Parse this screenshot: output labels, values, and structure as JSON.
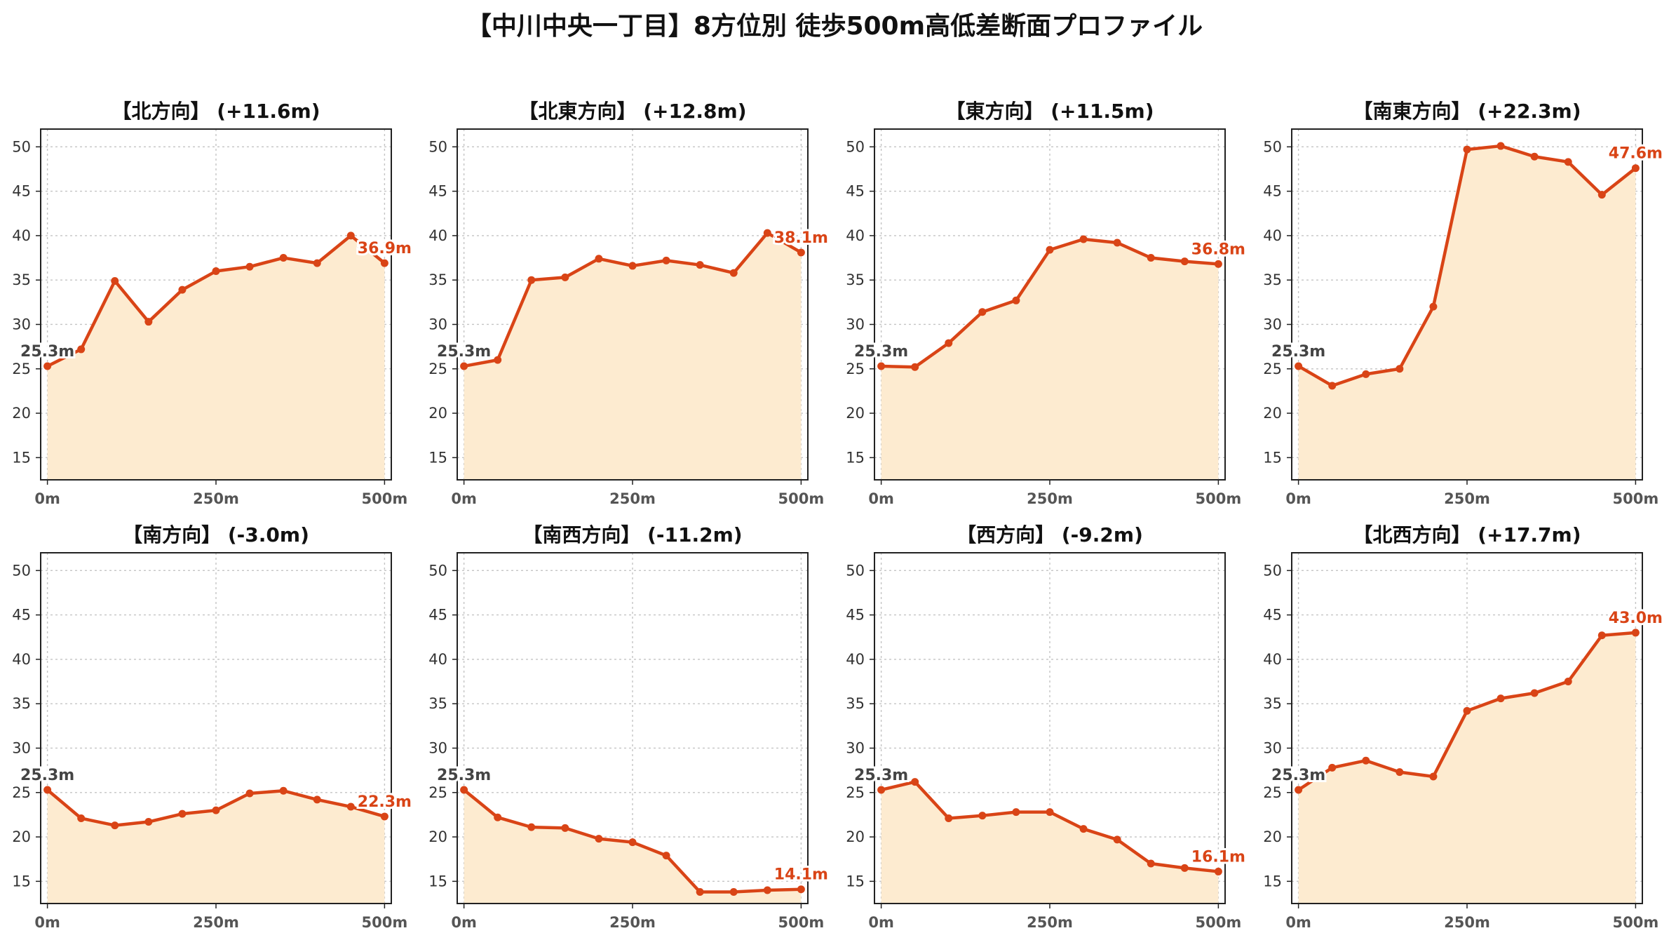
{
  "title": "【中川中央一丁目】8方位別 徒歩500m高低差断面プロファイル",
  "chart_data": [
    {
      "type": "area",
      "title": "【北方向】 (+11.6m)",
      "x": [
        0,
        50,
        100,
        150,
        200,
        250,
        300,
        350,
        400,
        450,
        500
      ],
      "y": [
        25.3,
        27.2,
        34.9,
        30.3,
        33.9,
        36.0,
        36.5,
        37.5,
        36.9,
        40.0,
        36.9
      ],
      "start_label": "25.3m",
      "end_label": "36.9m",
      "xticks": [
        "0m",
        "250m",
        "500m"
      ],
      "yticks": [
        15,
        20,
        25,
        30,
        35,
        40,
        45,
        50
      ],
      "ylim": [
        12.5,
        52
      ],
      "xlim": [
        -10,
        510
      ],
      "grid": true
    },
    {
      "type": "area",
      "title": "【北東方向】 (+12.8m)",
      "x": [
        0,
        50,
        100,
        150,
        200,
        250,
        300,
        350,
        400,
        450,
        500
      ],
      "y": [
        25.3,
        26.0,
        35.0,
        35.3,
        37.4,
        36.6,
        37.2,
        36.7,
        35.8,
        40.3,
        38.1
      ],
      "start_label": "25.3m",
      "end_label": "38.1m",
      "xticks": [
        "0m",
        "250m",
        "500m"
      ],
      "yticks": [
        15,
        20,
        25,
        30,
        35,
        40,
        45,
        50
      ],
      "ylim": [
        12.5,
        52
      ],
      "xlim": [
        -10,
        510
      ],
      "grid": true
    },
    {
      "type": "area",
      "title": "【東方向】 (+11.5m)",
      "x": [
        0,
        50,
        100,
        150,
        200,
        250,
        300,
        350,
        400,
        450,
        500
      ],
      "y": [
        25.3,
        25.2,
        27.9,
        31.4,
        32.7,
        38.4,
        39.6,
        39.2,
        37.5,
        37.1,
        36.8
      ],
      "start_label": "25.3m",
      "end_label": "36.8m",
      "xticks": [
        "0m",
        "250m",
        "500m"
      ],
      "yticks": [
        15,
        20,
        25,
        30,
        35,
        40,
        45,
        50
      ],
      "ylim": [
        12.5,
        52
      ],
      "xlim": [
        -10,
        510
      ],
      "grid": true
    },
    {
      "type": "area",
      "title": "【南東方向】 (+22.3m)",
      "x": [
        0,
        50,
        100,
        150,
        200,
        250,
        300,
        350,
        400,
        450,
        500
      ],
      "y": [
        25.3,
        23.1,
        24.4,
        25.0,
        32.0,
        49.7,
        50.1,
        48.9,
        48.3,
        44.6,
        47.6
      ],
      "start_label": "25.3m",
      "end_label": "47.6m",
      "xticks": [
        "0m",
        "250m",
        "500m"
      ],
      "yticks": [
        15,
        20,
        25,
        30,
        35,
        40,
        45,
        50
      ],
      "ylim": [
        12.5,
        52
      ],
      "xlim": [
        -10,
        510
      ],
      "grid": true
    },
    {
      "type": "area",
      "title": "【南方向】 (-3.0m)",
      "x": [
        0,
        50,
        100,
        150,
        200,
        250,
        300,
        350,
        400,
        450,
        500
      ],
      "y": [
        25.3,
        22.1,
        21.3,
        21.7,
        22.6,
        23.0,
        24.9,
        25.2,
        24.2,
        23.4,
        22.3
      ],
      "start_label": "25.3m",
      "end_label": "22.3m",
      "xticks": [
        "0m",
        "250m",
        "500m"
      ],
      "yticks": [
        15,
        20,
        25,
        30,
        35,
        40,
        45,
        50
      ],
      "ylim": [
        12.5,
        52
      ],
      "xlim": [
        -10,
        510
      ],
      "grid": true
    },
    {
      "type": "area",
      "title": "【南西方向】 (-11.2m)",
      "x": [
        0,
        50,
        100,
        150,
        200,
        250,
        300,
        350,
        400,
        450,
        500
      ],
      "y": [
        25.3,
        22.2,
        21.1,
        21.0,
        19.8,
        19.4,
        17.9,
        13.8,
        13.8,
        14.0,
        14.1
      ],
      "start_label": "25.3m",
      "end_label": "14.1m",
      "xticks": [
        "0m",
        "250m",
        "500m"
      ],
      "yticks": [
        15,
        20,
        25,
        30,
        35,
        40,
        45,
        50
      ],
      "ylim": [
        12.5,
        52
      ],
      "xlim": [
        -10,
        510
      ],
      "grid": true
    },
    {
      "type": "area",
      "title": "【西方向】 (-9.2m)",
      "x": [
        0,
        50,
        100,
        150,
        200,
        250,
        300,
        350,
        400,
        450,
        500
      ],
      "y": [
        25.3,
        26.2,
        22.1,
        22.4,
        22.8,
        22.8,
        20.9,
        19.7,
        17.0,
        16.5,
        16.1
      ],
      "start_label": "25.3m",
      "end_label": "16.1m",
      "xticks": [
        "0m",
        "250m",
        "500m"
      ],
      "yticks": [
        15,
        20,
        25,
        30,
        35,
        40,
        45,
        50
      ],
      "ylim": [
        12.5,
        52
      ],
      "xlim": [
        -10,
        510
      ],
      "grid": true
    },
    {
      "type": "area",
      "title": "【北西方向】 (+17.7m)",
      "x": [
        0,
        50,
        100,
        150,
        200,
        250,
        300,
        350,
        400,
        450,
        500
      ],
      "y": [
        25.3,
        27.8,
        28.6,
        27.3,
        26.8,
        34.2,
        35.6,
        36.2,
        37.5,
        42.7,
        43.0
      ],
      "start_label": "25.3m",
      "end_label": "43.0m",
      "xticks": [
        "0m",
        "250m",
        "500m"
      ],
      "yticks": [
        15,
        20,
        25,
        30,
        35,
        40,
        45,
        50
      ],
      "ylim": [
        12.5,
        52
      ],
      "xlim": [
        -10,
        510
      ],
      "grid": true
    }
  ],
  "colors": {
    "line": "#d94416",
    "fill": "#fdebd0",
    "grid": "#c4c4c4"
  }
}
